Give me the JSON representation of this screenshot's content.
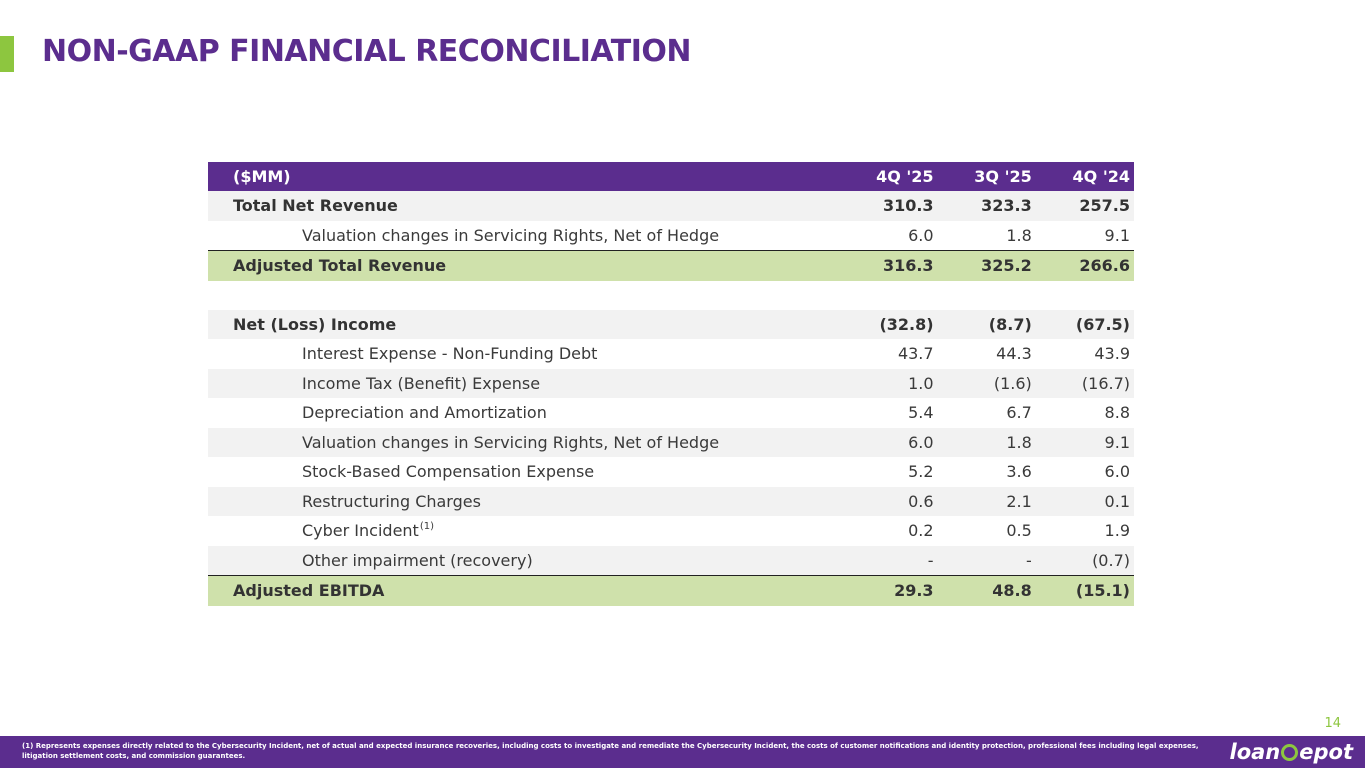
{
  "title": "NON-GAAP FINANCIAL RECONCILIATION",
  "table": {
    "header": [
      "($MM)",
      "4Q '25",
      "3Q '25",
      "4Q '24"
    ],
    "revenue_rows": [
      {
        "label": "Total Net Revenue",
        "values": [
          "310.3",
          "323.3",
          "257.5"
        ]
      },
      {
        "label": "Valuation changes in Servicing Rights, Net of Hedge",
        "values": [
          "6.0",
          "1.8",
          "9.1"
        ]
      }
    ],
    "adjusted_revenue": {
      "label": "Adjusted Total Revenue",
      "values": [
        "316.3",
        "325.2",
        "266.6"
      ]
    },
    "ebitda_rows": [
      {
        "label": "Net (Loss) Income",
        "values": [
          "(32.8)",
          "(8.7)",
          "(67.5)"
        ]
      },
      {
        "label": "Interest Expense - Non-Funding Debt",
        "values": [
          "43.7",
          "44.3",
          "43.9"
        ]
      },
      {
        "label": "Income Tax (Benefit) Expense",
        "values": [
          "1.0",
          "(1.6)",
          "(16.7)"
        ]
      },
      {
        "label": "Depreciation and Amortization",
        "values": [
          "5.4",
          "6.7",
          "8.8"
        ]
      },
      {
        "label": "Valuation changes in Servicing Rights, Net of Hedge",
        "values": [
          "6.0",
          "1.8",
          "9.1"
        ]
      },
      {
        "label": "Stock-Based Compensation Expense",
        "values": [
          "5.2",
          "3.6",
          "6.0"
        ]
      },
      {
        "label": "Restructuring Charges",
        "values": [
          "0.6",
          "2.1",
          "0.1"
        ]
      },
      {
        "label": "Cyber Incident",
        "footnote_ref": "(1)",
        "values": [
          "0.2",
          "0.5",
          "1.9"
        ]
      },
      {
        "label": "Other impairment (recovery)",
        "values": [
          "-",
          "-",
          "(0.7)"
        ]
      }
    ],
    "adjusted_ebitda": {
      "label": "Adjusted EBITDA",
      "values": [
        "29.3",
        "48.8",
        "(15.1)"
      ]
    }
  },
  "page_number": "14",
  "footnote": "(1)   Represents expenses directly related to the Cybersecurity Incident, net of actual and expected insurance recoveries, including costs to investigate and remediate the Cybersecurity Incident, the costs of customer notifications and identity protection, professional fees including legal expenses, litigation settlement costs, and commission guarantees.",
  "logo": {
    "left": "loan",
    "right": "epot"
  },
  "colors": {
    "brand_purple": "#5b2d8e",
    "brand_green": "#8dc63f",
    "total_row": "#cfe1ab"
  }
}
